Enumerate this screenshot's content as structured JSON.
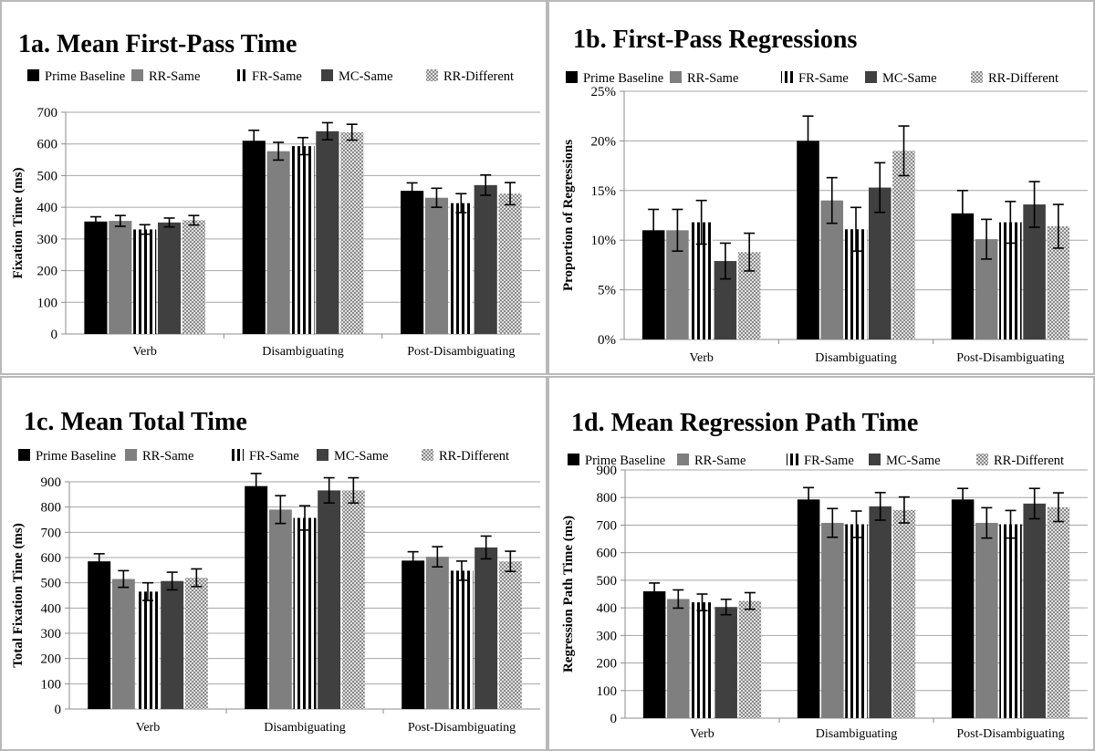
{
  "chart_data": [
    {
      "type": "bar",
      "title": "1a. Mean First-Pass Time",
      "ylabel": "Fixation Time (ms)",
      "categories": [
        "Verb",
        "Disambiguating",
        "Post-Disambiguating"
      ],
      "yticks": [
        "0",
        "100",
        "200",
        "300",
        "400",
        "500",
        "600",
        "700"
      ],
      "ylim": [
        0,
        700
      ],
      "grid": true,
      "legend": "top",
      "series": [
        {
          "name": "Prime Baseline",
          "values": [
            355,
            610,
            452
          ],
          "errors": [
            15,
            33,
            25
          ]
        },
        {
          "name": "RR-Same",
          "values": [
            357,
            577,
            430
          ],
          "errors": [
            17,
            28,
            30
          ]
        },
        {
          "name": "FR-Same",
          "values": [
            330,
            593,
            413
          ],
          "errors": [
            15,
            27,
            30
          ]
        },
        {
          "name": "MC-Same",
          "values": [
            352,
            640,
            470
          ],
          "errors": [
            14,
            27,
            32
          ]
        },
        {
          "name": "RR-Different",
          "values": [
            359,
            637,
            443
          ],
          "errors": [
            15,
            25,
            35
          ]
        }
      ]
    },
    {
      "type": "bar",
      "title": "1b. First-Pass Regressions",
      "ylabel": "Proportion of Regressions",
      "categories": [
        "Verb",
        "Disambiguating",
        "Post-Disambiguating"
      ],
      "yticks": [
        "0%",
        "5%",
        "10%",
        "15%",
        "20%",
        "25%"
      ],
      "ylim": [
        0,
        25
      ],
      "grid": true,
      "legend": "top",
      "series": [
        {
          "name": "Prime Baseline",
          "values": [
            11.0,
            20.0,
            12.7
          ],
          "errors": [
            2.1,
            2.5,
            2.3
          ]
        },
        {
          "name": "RR-Same",
          "values": [
            11.0,
            14.0,
            10.1
          ],
          "errors": [
            2.1,
            2.3,
            2.0
          ]
        },
        {
          "name": "FR-Same",
          "values": [
            11.8,
            11.1,
            11.8
          ],
          "errors": [
            2.2,
            2.2,
            2.1
          ]
        },
        {
          "name": "MC-Same",
          "values": [
            7.9,
            15.3,
            13.6
          ],
          "errors": [
            1.8,
            2.5,
            2.3
          ]
        },
        {
          "name": "RR-Different",
          "values": [
            8.8,
            19.0,
            11.4
          ],
          "errors": [
            1.9,
            2.5,
            2.2
          ]
        }
      ]
    },
    {
      "type": "bar",
      "title": "1c. Mean Total Time",
      "ylabel": "Total Fixation Time (ms)",
      "categories": [
        "Verb",
        "Disambiguating",
        "Post-Disambiguating"
      ],
      "yticks": [
        "0",
        "100",
        "200",
        "300",
        "400",
        "500",
        "600",
        "700",
        "800",
        "900"
      ],
      "ylim": [
        0,
        900
      ],
      "grid": true,
      "legend": "top",
      "series": [
        {
          "name": "Prime Baseline",
          "values": [
            585,
            883,
            588
          ],
          "errors": [
            30,
            50,
            35
          ]
        },
        {
          "name": "RR-Same",
          "values": [
            515,
            790,
            603
          ],
          "errors": [
            33,
            55,
            40
          ]
        },
        {
          "name": "FR-Same",
          "values": [
            465,
            757,
            548
          ],
          "errors": [
            35,
            48,
            38
          ]
        },
        {
          "name": "MC-Same",
          "values": [
            507,
            866,
            640
          ],
          "errors": [
            35,
            50,
            45
          ]
        },
        {
          "name": "RR-Different",
          "values": [
            520,
            866,
            585
          ],
          "errors": [
            35,
            50,
            40
          ]
        }
      ]
    },
    {
      "type": "bar",
      "title": "1d. Mean Regression Path Time",
      "ylabel": "Regression Path Time (ms)",
      "categories": [
        "Verb",
        "Disambiguating",
        "Post-Disambiguating"
      ],
      "yticks": [
        "0",
        "100",
        "200",
        "300",
        "400",
        "500",
        "600",
        "700",
        "800",
        "900"
      ],
      "ylim": [
        0,
        900
      ],
      "grid": true,
      "legend": "top",
      "series": [
        {
          "name": "Prime Baseline",
          "values": [
            460,
            793,
            793
          ],
          "errors": [
            30,
            43,
            40
          ]
        },
        {
          "name": "RR-Same",
          "values": [
            432,
            708,
            708
          ],
          "errors": [
            33,
            52,
            55
          ]
        },
        {
          "name": "FR-Same",
          "values": [
            420,
            703,
            703
          ],
          "errors": [
            30,
            48,
            50
          ]
        },
        {
          "name": "MC-Same",
          "values": [
            403,
            768,
            778
          ],
          "errors": [
            28,
            50,
            55
          ]
        },
        {
          "name": "RR-Different",
          "values": [
            425,
            755,
            765
          ],
          "errors": [
            30,
            47,
            52
          ]
        }
      ]
    }
  ]
}
